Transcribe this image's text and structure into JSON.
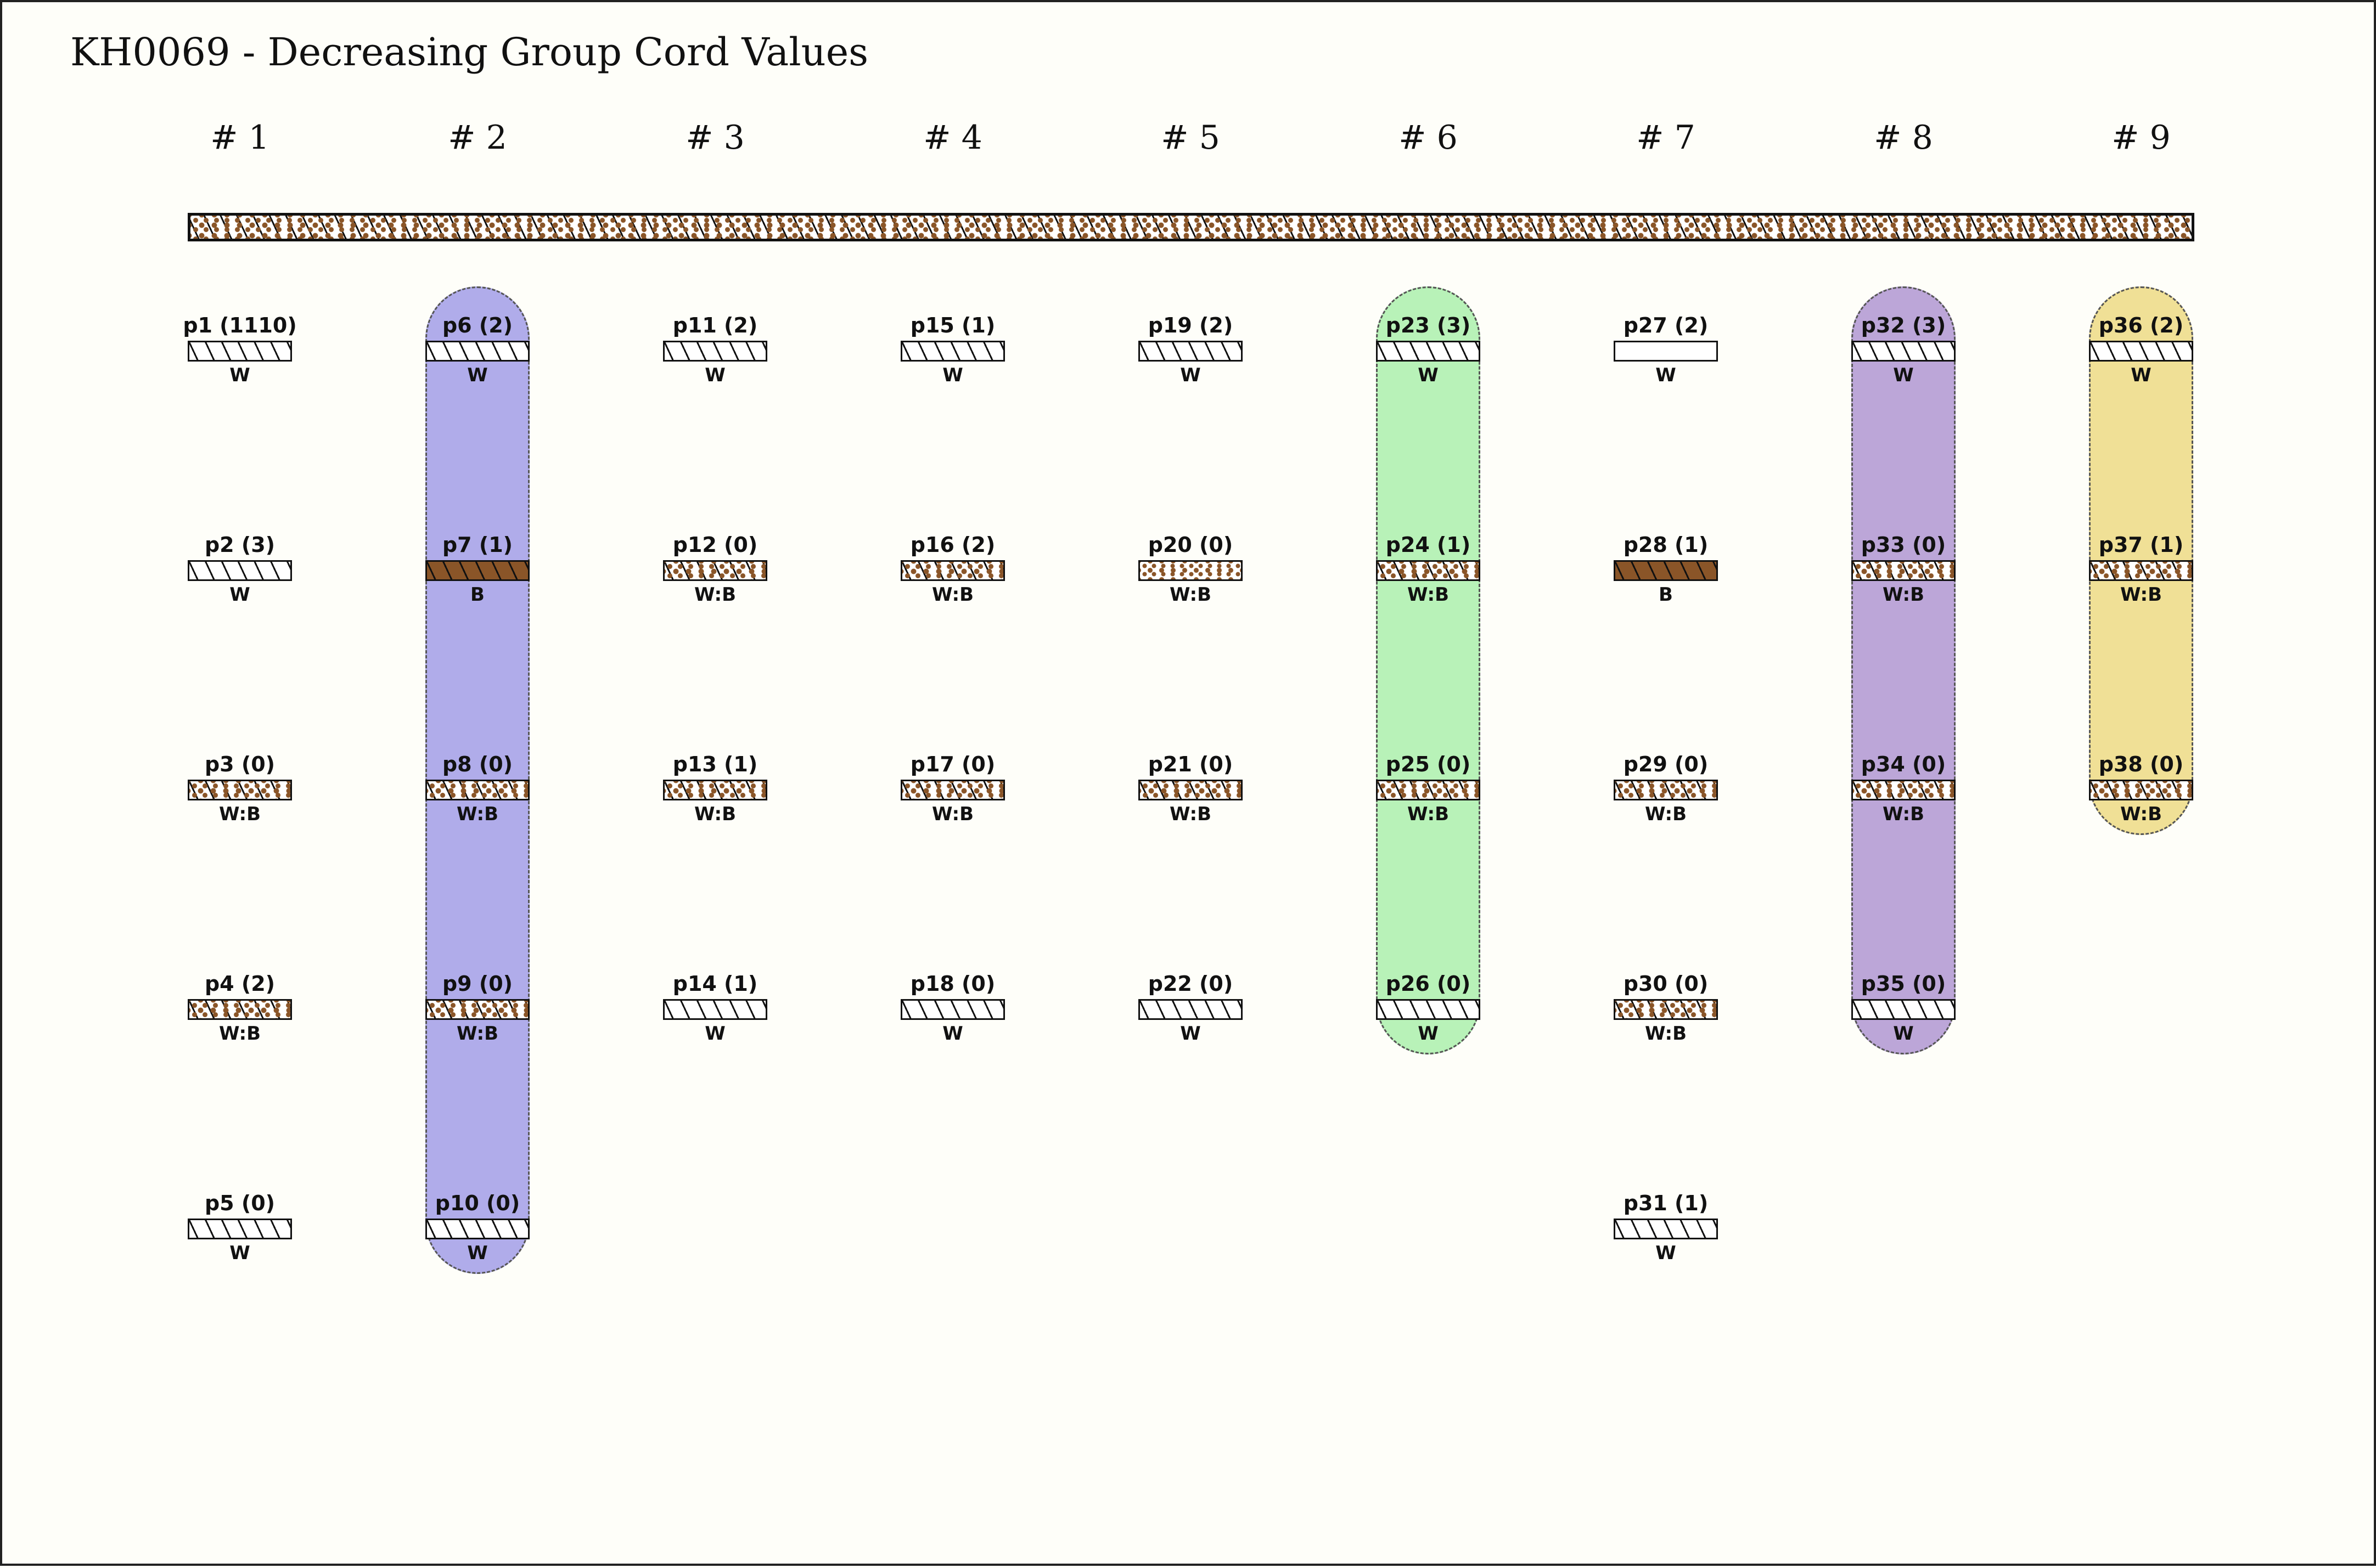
{
  "title": "KH0069 - Decreasing Group Cord Values",
  "colors": {
    "white": "#ffffff",
    "brown": "#8a5528",
    "hatch": "#111111",
    "highlight_blue": "#b0acea",
    "highlight_green": "#b8f2b8",
    "highlight_purple": "#bca6d8",
    "highlight_yellow": "#f0e096"
  },
  "groups": [
    {
      "label": "# 1",
      "highlight": "",
      "cords": [
        {
          "label": "p1 (1110)",
          "color": "W",
          "fill": "w-hatch"
        },
        {
          "label": "p2 (3)",
          "color": "W",
          "fill": "w-hatch"
        },
        {
          "label": "p3 (0)",
          "color": "W:B",
          "fill": "wb"
        },
        {
          "label": "p4 (2)",
          "color": "W:B",
          "fill": "wb"
        },
        {
          "label": "p5 (0)",
          "color": "W",
          "fill": "w-hatch"
        }
      ]
    },
    {
      "label": "# 2",
      "highlight": "highlight_blue",
      "cords": [
        {
          "label": "p6 (2)",
          "color": "W",
          "fill": "w-hatch"
        },
        {
          "label": "p7 (1)",
          "color": "B",
          "fill": "b"
        },
        {
          "label": "p8 (0)",
          "color": "W:B",
          "fill": "wb"
        },
        {
          "label": "p9 (0)",
          "color": "W:B",
          "fill": "wb"
        },
        {
          "label": "p10 (0)",
          "color": "W",
          "fill": "w-hatch"
        }
      ]
    },
    {
      "label": "# 3",
      "highlight": "",
      "cords": [
        {
          "label": "p11 (2)",
          "color": "W",
          "fill": "w-hatch"
        },
        {
          "label": "p12 (0)",
          "color": "W:B",
          "fill": "wb"
        },
        {
          "label": "p13 (1)",
          "color": "W:B",
          "fill": "wb"
        },
        {
          "label": "p14 (1)",
          "color": "W",
          "fill": "w-hatch"
        }
      ]
    },
    {
      "label": "# 4",
      "highlight": "",
      "cords": [
        {
          "label": "p15 (1)",
          "color": "W",
          "fill": "w-hatch"
        },
        {
          "label": "p16 (2)",
          "color": "W:B",
          "fill": "wb"
        },
        {
          "label": "p17 (0)",
          "color": "W:B",
          "fill": "wb"
        },
        {
          "label": "p18 (0)",
          "color": "W",
          "fill": "w-hatch"
        }
      ]
    },
    {
      "label": "# 5",
      "highlight": "",
      "cords": [
        {
          "label": "p19 (2)",
          "color": "W",
          "fill": "w-hatch"
        },
        {
          "label": "p20 (0)",
          "color": "W:B",
          "fill": "wb-dots"
        },
        {
          "label": "p21 (0)",
          "color": "W:B",
          "fill": "wb"
        },
        {
          "label": "p22 (0)",
          "color": "W",
          "fill": "w-hatch"
        }
      ]
    },
    {
      "label": "# 6",
      "highlight": "highlight_green",
      "cords": [
        {
          "label": "p23 (3)",
          "color": "W",
          "fill": "w-hatch"
        },
        {
          "label": "p24 (1)",
          "color": "W:B",
          "fill": "wb"
        },
        {
          "label": "p25 (0)",
          "color": "W:B",
          "fill": "wb"
        },
        {
          "label": "p26 (0)",
          "color": "W",
          "fill": "w-hatch"
        }
      ]
    },
    {
      "label": "# 7",
      "highlight": "",
      "cords": [
        {
          "label": "p27 (2)",
          "color": "W",
          "fill": "w-plain"
        },
        {
          "label": "p28 (1)",
          "color": "B",
          "fill": "b"
        },
        {
          "label": "p29 (0)",
          "color": "W:B",
          "fill": "wb"
        },
        {
          "label": "p30 (0)",
          "color": "W:B",
          "fill": "wb"
        },
        {
          "label": "p31 (1)",
          "color": "W",
          "fill": "w-hatch"
        }
      ]
    },
    {
      "label": "# 8",
      "highlight": "highlight_purple",
      "cords": [
        {
          "label": "p32 (3)",
          "color": "W",
          "fill": "w-hatch"
        },
        {
          "label": "p33 (0)",
          "color": "W:B",
          "fill": "wb"
        },
        {
          "label": "p34 (0)",
          "color": "W:B",
          "fill": "wb"
        },
        {
          "label": "p35 (0)",
          "color": "W",
          "fill": "w-hatch"
        }
      ]
    },
    {
      "label": "# 9",
      "highlight": "highlight_yellow",
      "cords": [
        {
          "label": "p36 (2)",
          "color": "W",
          "fill": "w-hatch"
        },
        {
          "label": "p37 (1)",
          "color": "W:B",
          "fill": "wb"
        },
        {
          "label": "p38 (0)",
          "color": "W:B",
          "fill": "wb"
        }
      ]
    }
  ]
}
